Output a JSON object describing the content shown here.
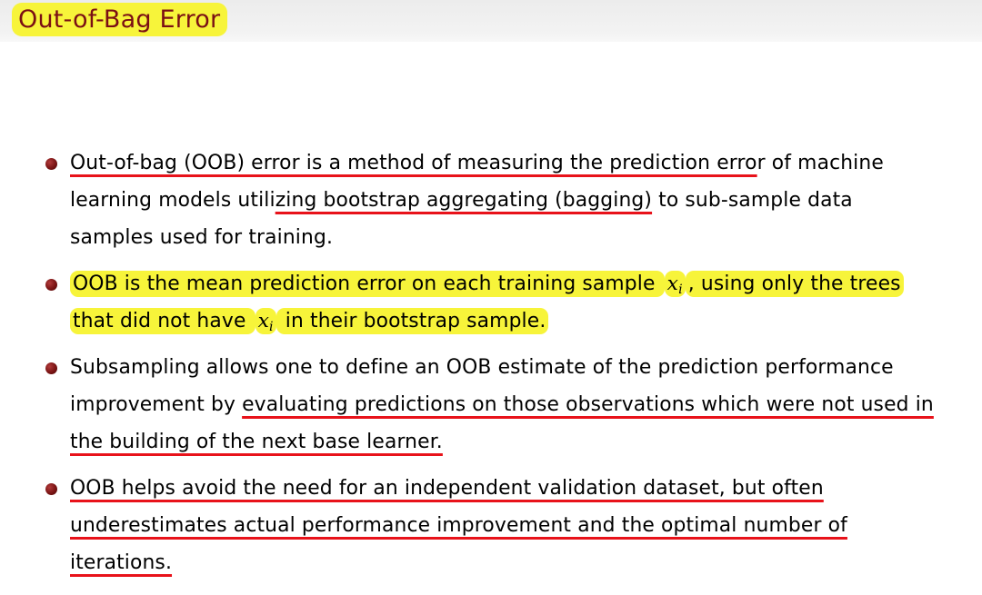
{
  "slide": {
    "title": "Out-of-Bag Error"
  },
  "colors": {
    "title_text": "#7a0f14",
    "highlight": "#f7f43a",
    "underline": "#e8121a",
    "bullet": "#7a1414"
  },
  "bullets": [
    {
      "lines": [
        {
          "u": "Out-of-bag (OOB) error is a method of measuring the prediction erro",
          "t": "r of machine"
        },
        {
          "a": "learning models utili",
          "u": "zing bootstrap aggregating (bagging)",
          "t": " to sub-sample data"
        },
        {
          "t": "samples used for training."
        }
      ]
    },
    {
      "lines": [
        {
          "h1": "OOB is the mean prediction error on each training sample ",
          "var": "x",
          "sub": "i",
          "h2": ", using only the trees"
        },
        {
          "h1": "that did not have ",
          "var": "x",
          "sub": "i",
          "h2": " in their bootstrap sample."
        }
      ]
    },
    {
      "lines": [
        {
          "t": "Subsampling allows one to define an OOB estimate of the prediction performance"
        },
        {
          "a": "improvement by ",
          "u": "evaluating predictions on those observations which were not used in"
        },
        {
          "u": "the building of the next base learner."
        }
      ]
    },
    {
      "lines": [
        {
          "u": "OOB helps avoid the need for an independent validation dataset, but often"
        },
        {
          "u": "underestimates actual performance improvement and the optimal number of"
        },
        {
          "u": "iterations."
        }
      ]
    }
  ]
}
